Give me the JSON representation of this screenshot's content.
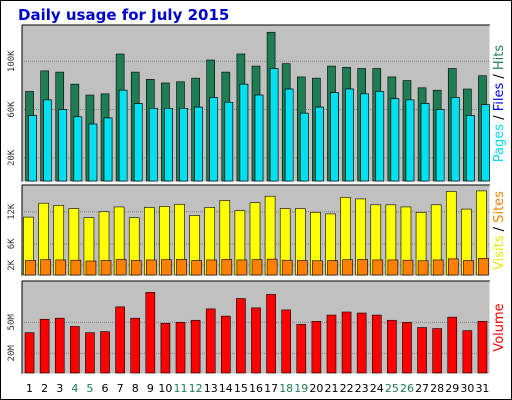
{
  "title": "Daily usage for July 2015",
  "colors": {
    "background": "#c0c0c0",
    "hits": "#1e7d52",
    "files": "#00ffff",
    "pages": "#00e0f0",
    "visits": "#ffff00",
    "sites": "#ff8000",
    "volume": "#ff0000",
    "title": "#0000cc",
    "weekday_label": "#000000",
    "weekend_label": "#1e7d52"
  },
  "chart_data": [
    {
      "type": "bar",
      "panel": "top",
      "x": [
        "1",
        "2",
        "3",
        "4",
        "5",
        "6",
        "7",
        "8",
        "9",
        "10",
        "11",
        "12",
        "13",
        "14",
        "15",
        "16",
        "17",
        "18",
        "19",
        "20",
        "21",
        "22",
        "23",
        "24",
        "25",
        "26",
        "27",
        "28",
        "29",
        "30",
        "31"
      ],
      "weekend_days": [
        "4",
        "5",
        "11",
        "12",
        "18",
        "19",
        "25",
        "26"
      ],
      "series": [
        {
          "name": "Hits",
          "values": [
            75,
            92,
            91,
            81,
            72,
            73,
            106,
            91,
            85,
            82,
            83,
            86,
            101,
            91,
            106,
            96,
            124,
            98,
            87,
            86,
            96,
            95,
            94,
            94,
            87,
            84,
            78,
            76,
            94,
            77,
            88
          ]
        },
        {
          "name": "Files",
          "values": [
            55,
            68,
            60,
            54,
            48,
            53,
            76,
            65,
            61,
            61,
            61,
            62,
            70,
            66,
            81,
            72,
            94,
            77,
            57,
            62,
            74,
            77,
            73,
            75,
            69,
            68,
            65,
            60,
            70,
            55,
            64
          ]
        },
        {
          "name": "Pages",
          "values": [
            55,
            68,
            60,
            54,
            48,
            53,
            76,
            65,
            61,
            61,
            61,
            62,
            70,
            66,
            81,
            72,
            94,
            77,
            57,
            62,
            74,
            77,
            73,
            75,
            69,
            68,
            65,
            60,
            70,
            55,
            64
          ]
        }
      ],
      "yticks": [
        "20K",
        "60K",
        "100K"
      ],
      "ytick_values": [
        20,
        60,
        100
      ],
      "ylim": [
        0,
        130
      ],
      "right_label": [
        "Pages",
        " / ",
        "Files",
        " / ",
        "Hits"
      ]
    },
    {
      "type": "bar",
      "panel": "middle",
      "x": [
        "1",
        "2",
        "3",
        "4",
        "5",
        "6",
        "7",
        "8",
        "9",
        "10",
        "11",
        "12",
        "13",
        "14",
        "15",
        "16",
        "17",
        "18",
        "19",
        "20",
        "21",
        "22",
        "23",
        "24",
        "25",
        "26",
        "27",
        "28",
        "29",
        "30",
        "31"
      ],
      "series": [
        {
          "name": "Visits",
          "values": [
            11000,
            13600,
            13200,
            12600,
            10900,
            12000,
            12900,
            10900,
            12800,
            13000,
            13400,
            11300,
            12800,
            14100,
            12200,
            13700,
            14900,
            12600,
            12600,
            11900,
            11600,
            14700,
            14400,
            13300,
            13300,
            12900,
            11900,
            13300,
            15800,
            12500,
            15900
          ]
        },
        {
          "name": "Sites",
          "values": [
            2900,
            3050,
            3000,
            2950,
            2800,
            2900,
            3100,
            2900,
            3000,
            3050,
            3100,
            2900,
            3000,
            3100,
            3000,
            3050,
            3150,
            2950,
            2900,
            2850,
            2900,
            3050,
            3100,
            3000,
            3000,
            2950,
            2850,
            3000,
            3200,
            2900,
            3300
          ]
        }
      ],
      "yticks": [
        "2K",
        "6K",
        "12K"
      ],
      "ytick_values": [
        2000,
        6000,
        12000
      ],
      "ylim": [
        0,
        17000
      ],
      "right_label": [
        "Visits",
        " / ",
        "Sites"
      ]
    },
    {
      "type": "bar",
      "panel": "bottom",
      "x": [
        "1",
        "2",
        "3",
        "4",
        "5",
        "6",
        "7",
        "8",
        "9",
        "10",
        "11",
        "12",
        "13",
        "14",
        "15",
        "16",
        "17",
        "18",
        "19",
        "20",
        "21",
        "22",
        "23",
        "24",
        "25",
        "26",
        "27",
        "28",
        "29",
        "30",
        "31"
      ],
      "series": [
        {
          "name": "Volume",
          "values": [
            40,
            53,
            54,
            46,
            40,
            41,
            65,
            54,
            79,
            49,
            50,
            52,
            63,
            56,
            73,
            64,
            77,
            62,
            48,
            51,
            57,
            60,
            59,
            57,
            52,
            50,
            45,
            44,
            55,
            42,
            51
          ]
        }
      ],
      "yticks": [
        "20M",
        "50M"
      ],
      "ytick_values": [
        20,
        50
      ],
      "ylim": [
        0,
        90
      ],
      "right_label": [
        "Volume"
      ]
    }
  ]
}
